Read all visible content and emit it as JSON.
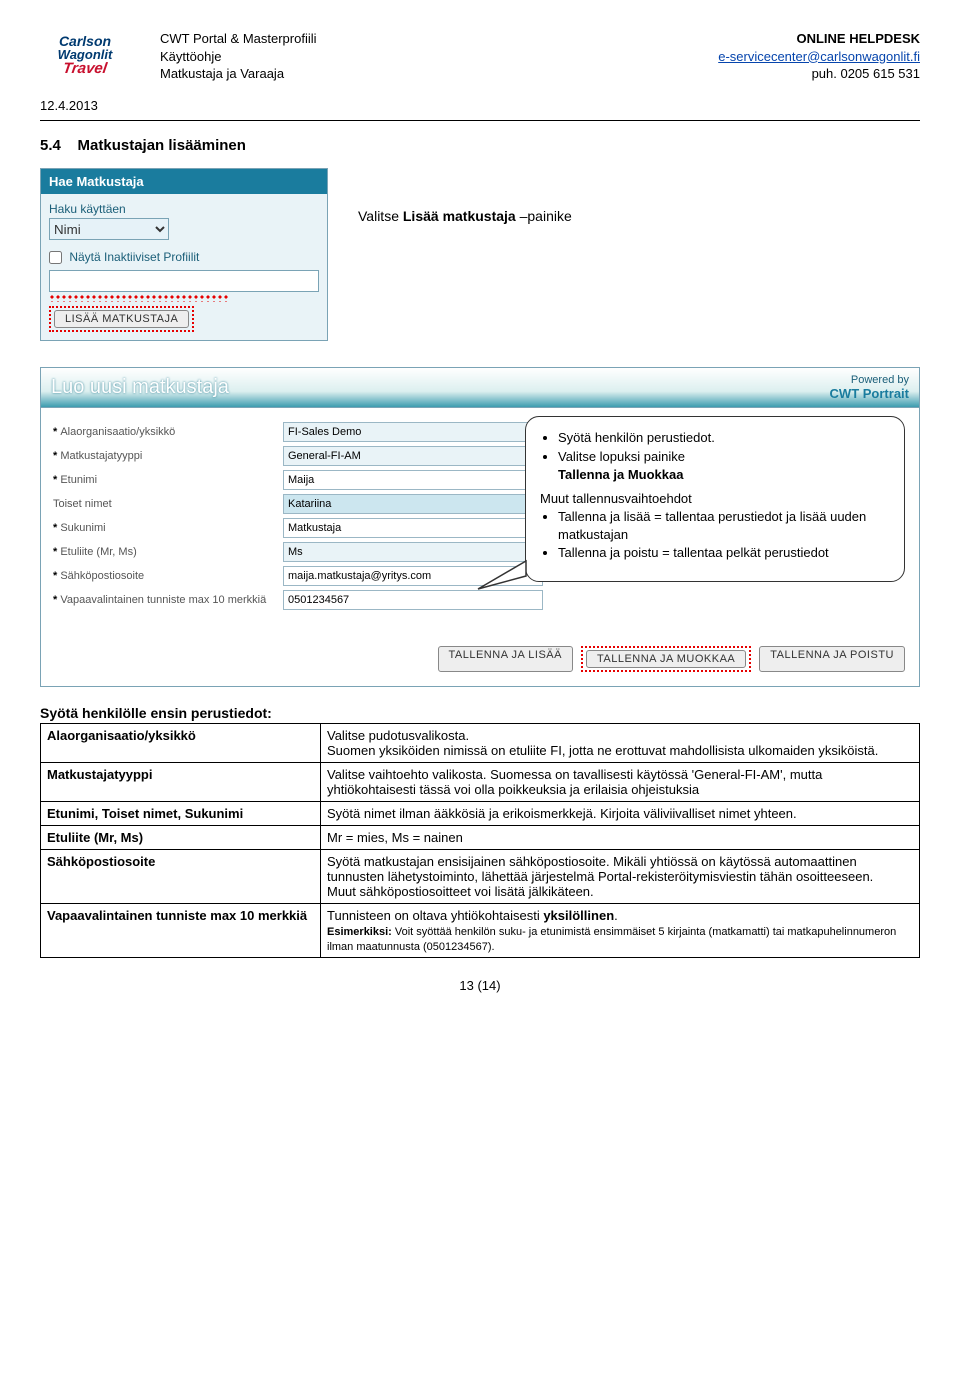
{
  "logo": {
    "l1": "Carlson",
    "l2": "Wagonlit",
    "l3": "Travel"
  },
  "header": {
    "date": "12.4.2013",
    "center": [
      "CWT Portal & Masterprofiili",
      "Käyttöohje",
      "Matkustaja ja Varaaja"
    ],
    "right_title": "ONLINE HELPDESK",
    "email": "e-servicecenter@carlsonwagonlit.fi",
    "phone": "puh. 0205 615 531"
  },
  "section": {
    "number": "5.4",
    "title": "Matkustajan lisääminen",
    "instruction_pre": "Valitse ",
    "instruction_bold": "Lisää matkustaja",
    "instruction_post": " –painike"
  },
  "search_panel": {
    "title": "Hae Matkustaja",
    "field_label": "Haku käyttäen",
    "select_value": "Nimi",
    "checkbox_label": "Näytä Inaktiiviset Profiilit",
    "search_value": "",
    "add_button": "LISÄÄ MATKUSTAJA"
  },
  "create_panel": {
    "title": "Luo uusi matkustaja",
    "powered_label": "Powered by",
    "powered_brand": "CWT Portrait",
    "rows": [
      {
        "label": "Alaorganisaatio/yksikkö",
        "req": true,
        "value": "FI-Sales Demo",
        "dropdown": true,
        "hl": false
      },
      {
        "label": "Matkustajatyyppi",
        "req": true,
        "value": "General-FI-AM",
        "dropdown": true,
        "hl": false
      },
      {
        "label": "Etunimi",
        "req": true,
        "value": "Maija",
        "dropdown": false,
        "hl": false
      },
      {
        "label": "Toiset nimet",
        "req": false,
        "value": "Katariina",
        "dropdown": false,
        "hl": true
      },
      {
        "label": "Sukunimi",
        "req": true,
        "value": "Matkustaja",
        "dropdown": false,
        "hl": false
      },
      {
        "label": "Etuliite (Mr, Ms)",
        "req": true,
        "value": "Ms",
        "dropdown": true,
        "hl": false
      },
      {
        "label": "Sähköpostiosoite",
        "req": true,
        "value": "maija.matkustaja@yritys.com",
        "dropdown": false,
        "hl": false
      },
      {
        "label": "Vapaavalintainen tunniste max 10 merkkiä",
        "req": true,
        "value": "0501234567",
        "dropdown": false,
        "hl": false
      }
    ],
    "buttons": [
      "TALLENNA JA LISÄÄ",
      "TALLENNA JA MUOKKAA",
      "TALLENNA JA POISTU"
    ]
  },
  "callout": {
    "line1": "Syötä henkilön perustiedot.",
    "line2_pre": "Valitse lopuksi painike",
    "line2_bold": "Tallenna ja Muokkaa",
    "sub_title": "Muut tallennusvaihtoehdot",
    "sub1": "Tallenna ja lisää = tallentaa perustiedot ja lisää uuden matkustajan",
    "sub2": "Tallenna ja poistu = tallentaa pelkät perustiedot"
  },
  "defs": {
    "lead": "Syötä henkilölle ensin perustiedot:",
    "rows": [
      {
        "k": "Alaorganisaatio/yksikkö",
        "v": "Valitse pudotusvalikosta.\nSuomen yksiköiden nimissä on etuliite FI, jotta ne erottuvat mahdollisista ulkomaiden yksiköistä."
      },
      {
        "k": "Matkustajatyyppi",
        "v": "Valitse vaihtoehto valikosta. Suomessa on tavallisesti käytössä 'General-FI-AM', mutta yhtiökohtaisesti tässä  voi olla poikkeuksia ja erilaisia ohjeistuksia"
      },
      {
        "k": "Etunimi, Toiset nimet, Sukunimi",
        "v": "Syötä nimet ilman ääkkösiä ja erikoismerkkejä. Kirjoita väliviivalliset nimet yhteen."
      },
      {
        "k": "Etuliite (Mr, Ms)",
        "v": "Mr = mies, Ms = nainen"
      },
      {
        "k": "Sähköpostiosoite",
        "v": "Syötä matkustajan ensisijainen sähköpostiosoite. Mikäli yhtiössä on käytössä automaattinen tunnusten lähetystoiminto, lähettää järjestelmä Portal-rekisteröitymisviestin tähän osoitteeseen.\nMuut sähköpostiosoitteet voi lisätä jälkikäteen."
      },
      {
        "k": "Vapaavalintainen tunniste max 10 merkkiä",
        "v": "Tunnisteen on oltava yhtiökohtaisesti <b>yksilöllinen</b>.\n<span class='small'><b>Esimerkiksi:</b> Voit syöttää henkilön suku- ja etunimistä ensimmäiset 5 kirjainta (matkamatti) tai matkapuhelinnumeron ilman maatunnusta (0501234567).</span>"
      }
    ]
  },
  "footer": "13 (14)"
}
